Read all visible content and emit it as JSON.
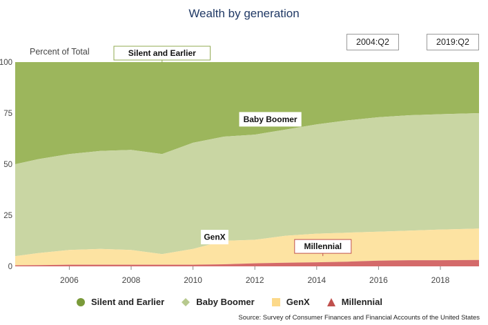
{
  "title": "Wealth by generation",
  "range": {
    "start": "2004:Q2",
    "end": "2019:Q2"
  },
  "source": "Source: Survey of Consumer Finances and Financial Accounts of the United States",
  "chart_data": {
    "type": "area",
    "stacked": true,
    "title": "Wealth by generation",
    "ylabel": "Percent of Total",
    "xlabel": "",
    "ylim": [
      0,
      100
    ],
    "xlim": [
      2004.25,
      2019.25
    ],
    "yticks": [
      0,
      25,
      50,
      75,
      100
    ],
    "xticks": [
      2006,
      2008,
      2010,
      2012,
      2014,
      2016,
      2018
    ],
    "colors": {
      "Millennial": "#d46a6a",
      "GenX": "#fde3a2",
      "Baby Boomer": "#c9d6a3",
      "Silent and Earlier": "#9cb65c"
    },
    "x": [
      2004.25,
      2005.0,
      2006.0,
      2007.0,
      2008.0,
      2009.0,
      2010.0,
      2011.0,
      2012.0,
      2013.0,
      2014.0,
      2015.0,
      2016.0,
      2017.0,
      2018.0,
      2019.25
    ],
    "series": [
      {
        "name": "Millennial",
        "values": [
          0.5,
          0.6,
          0.8,
          0.8,
          0.8,
          0.8,
          0.8,
          1.0,
          1.5,
          1.8,
          2.0,
          2.3,
          2.8,
          3.0,
          3.0,
          3.1
        ]
      },
      {
        "name": "GenX",
        "values": [
          5.0,
          6.5,
          8.0,
          8.5,
          8.0,
          6.0,
          8.5,
          12.5,
          13.0,
          15.0,
          16.0,
          16.5,
          17.0,
          17.5,
          18.0,
          18.5
        ]
      },
      {
        "name": "Baby Boomer",
        "values": [
          50.0,
          52.5,
          55.0,
          56.5,
          57.0,
          55.0,
          60.5,
          63.5,
          64.5,
          67.0,
          69.5,
          71.5,
          73.0,
          74.0,
          74.5,
          75.0
        ]
      },
      {
        "name": "Silent and Earlier",
        "values": [
          100,
          100,
          100,
          100,
          100,
          100,
          100,
          100,
          100,
          100,
          100,
          100,
          100,
          100,
          100,
          100
        ]
      }
    ],
    "cumulative_note": "values are cumulative upper bounds of each stacked band (percent of total)",
    "annotations": [
      {
        "label": "Silent and Earlier",
        "x": 2009.0,
        "y": 100
      },
      {
        "label": "Baby Boomer",
        "x": 2012.5,
        "y": 72
      },
      {
        "label": "GenX",
        "x": 2010.7,
        "y": 15
      },
      {
        "label": "Millennial",
        "x": 2014.2,
        "y": 3
      }
    ],
    "legend": [
      "Silent and Earlier",
      "Baby Boomer",
      "GenX",
      "Millennial"
    ],
    "legend_position": "bottom"
  }
}
